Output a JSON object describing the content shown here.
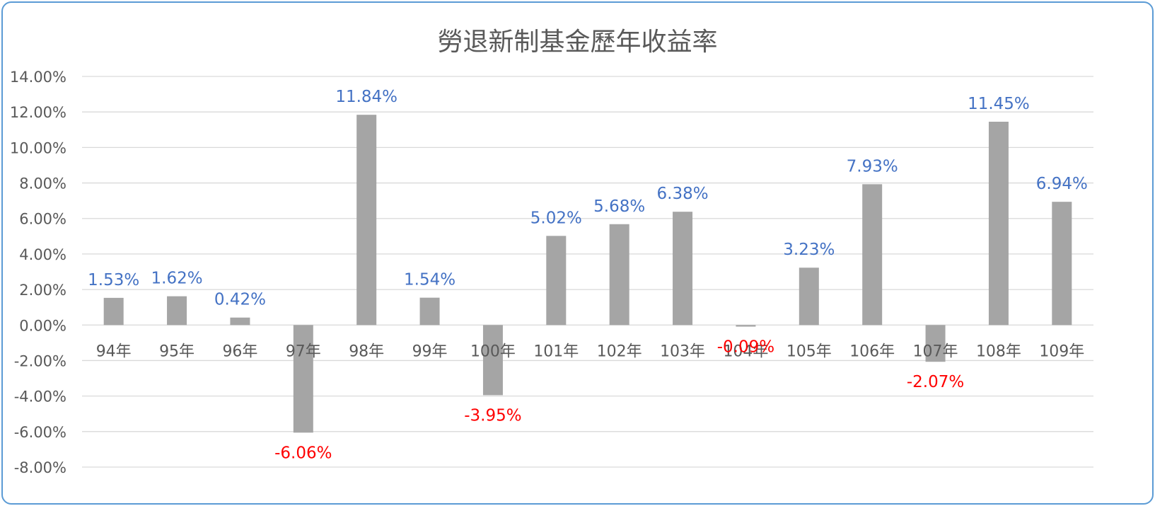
{
  "chart_data": {
    "type": "bar",
    "title": "勞退新制基金歷年收益率",
    "categories": [
      "94年",
      "95年",
      "96年",
      "97年",
      "98年",
      "99年",
      "100年",
      "101年",
      "102年",
      "103年",
      "104年",
      "105年",
      "106年",
      "107年",
      "108年",
      "109年"
    ],
    "values": [
      1.53,
      1.62,
      0.42,
      -6.06,
      11.84,
      1.54,
      -3.95,
      5.02,
      5.68,
      6.38,
      -0.09,
      3.23,
      7.93,
      -2.07,
      11.45,
      6.94
    ],
    "data_labels": [
      "1.53%",
      "1.62%",
      "0.42%",
      "-6.06%",
      "11.84%",
      "1.54%",
      "-3.95%",
      "5.02%",
      "5.68%",
      "6.38%",
      "-0.09%",
      "3.23%",
      "7.93%",
      "-2.07%",
      "11.45%",
      "6.94%"
    ],
    "y_ticks": [
      "14.00%",
      "12.00%",
      "10.00%",
      "8.00%",
      "6.00%",
      "4.00%",
      "2.00%",
      "0.00%",
      "-2.00%",
      "-4.00%",
      "-6.00%",
      "-8.00%"
    ],
    "ylim": [
      -8,
      14
    ],
    "ytick_step": 2,
    "grid": true,
    "legend": "none",
    "colors": {
      "bar": "#a5a5a5",
      "positive_label": "#4472c4",
      "negative_label": "#ff0000",
      "grid": "#d9d9d9",
      "axis_text": "#595959",
      "border": "#5b9bd5"
    }
  }
}
